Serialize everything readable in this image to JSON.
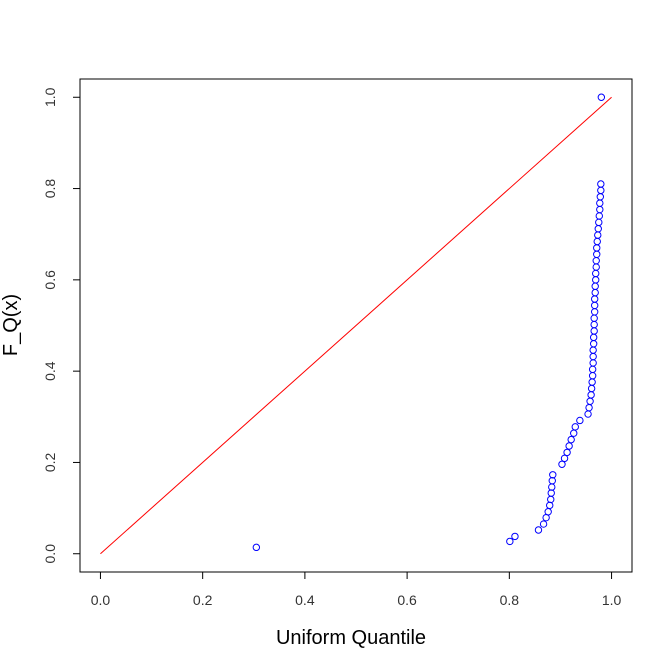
{
  "chart_data": {
    "type": "scatter",
    "title": "",
    "xlabel": "Uniform Quantile",
    "ylabel": "F_Q(x)",
    "xlim": [
      -0.04,
      1.04
    ],
    "ylim": [
      -0.04,
      1.04
    ],
    "xticks": [
      0.0,
      0.2,
      0.4,
      0.6,
      0.8,
      1.0
    ],
    "yticks": [
      0.0,
      0.2,
      0.4,
      0.6,
      0.8,
      1.0
    ],
    "xtick_labels": [
      "0.0",
      "0.2",
      "0.4",
      "0.6",
      "0.8",
      "1.0"
    ],
    "ytick_labels": [
      "0.0",
      "0.2",
      "0.4",
      "0.6",
      "0.8",
      "1.0"
    ],
    "grid": false,
    "colors": {
      "points": "#0000ff",
      "reference_line": "#ff0000",
      "frame": "#000000"
    },
    "reference_line": {
      "x": [
        0.0,
        1.0
      ],
      "y": [
        0.0,
        1.0
      ]
    },
    "series": [
      {
        "x": [
          0.305,
          0.801,
          0.811,
          0.857,
          0.867,
          0.872,
          0.876,
          0.879,
          0.881,
          0.882,
          0.883,
          0.884,
          0.885,
          0.903,
          0.908,
          0.913,
          0.917,
          0.921,
          0.926,
          0.929,
          0.938,
          0.954,
          0.956,
          0.958,
          0.96,
          0.961,
          0.962,
          0.963,
          0.963,
          0.964,
          0.964,
          0.964,
          0.965,
          0.965,
          0.966,
          0.966,
          0.966,
          0.967,
          0.967,
          0.967,
          0.968,
          0.968,
          0.969,
          0.969,
          0.97,
          0.97,
          0.971,
          0.971,
          0.972,
          0.973,
          0.974,
          0.975,
          0.976,
          0.977,
          0.977,
          0.978,
          0.979,
          0.979,
          0.98
        ],
        "y": [
          0.014,
          0.027,
          0.038,
          0.052,
          0.065,
          0.079,
          0.092,
          0.106,
          0.119,
          0.133,
          0.146,
          0.16,
          0.173,
          0.196,
          0.209,
          0.222,
          0.236,
          0.25,
          0.264,
          0.278,
          0.292,
          0.306,
          0.32,
          0.334,
          0.348,
          0.362,
          0.376,
          0.39,
          0.404,
          0.418,
          0.432,
          0.446,
          0.46,
          0.474,
          0.488,
          0.502,
          0.516,
          0.53,
          0.544,
          0.558,
          0.572,
          0.586,
          0.6,
          0.614,
          0.628,
          0.642,
          0.656,
          0.67,
          0.684,
          0.698,
          0.712,
          0.726,
          0.74,
          0.754,
          0.768,
          0.782,
          0.796,
          0.81,
          1.0
        ]
      }
    ]
  }
}
